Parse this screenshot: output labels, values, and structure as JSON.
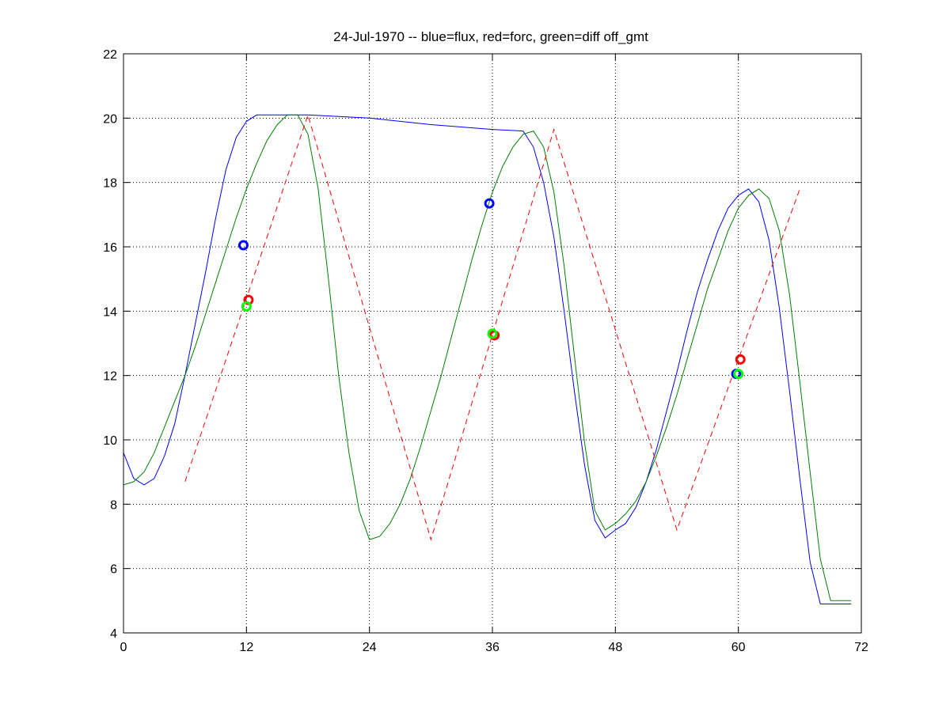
{
  "chart_data": {
    "type": "line",
    "title": "24-Jul-1970 -- blue=flux, red=forc, green=diff off_gmt",
    "xlim": [
      0,
      72
    ],
    "ylim": [
      4,
      22
    ],
    "xticks": [
      0,
      12,
      24,
      36,
      48,
      60,
      72
    ],
    "yticks": [
      4,
      6,
      8,
      10,
      12,
      14,
      16,
      18,
      20,
      22
    ],
    "grid": true,
    "series": [
      {
        "color": "#0000ff",
        "style": "solid",
        "x": [
          0,
          1,
          2,
          3,
          4,
          5,
          6,
          7,
          8,
          9,
          10,
          11,
          12,
          13,
          14,
          15,
          16,
          17,
          18,
          24,
          30,
          36,
          39,
          40,
          41,
          42,
          43,
          44,
          45,
          46,
          47,
          48,
          49,
          50,
          51,
          52,
          53,
          54,
          55,
          56,
          57,
          58,
          59,
          60,
          61,
          62,
          63,
          64,
          65,
          66,
          67,
          68,
          69,
          70,
          71
        ],
        "y": [
          9.6,
          8.8,
          8.6,
          8.8,
          9.5,
          10.5,
          12.0,
          13.6,
          15.2,
          16.9,
          18.4,
          19.4,
          19.9,
          20.1,
          20.1,
          20.1,
          20.1,
          20.1,
          20.1,
          20.0,
          19.8,
          19.65,
          19.6,
          19.1,
          18.0,
          16.3,
          14.0,
          11.5,
          9.2,
          7.5,
          6.95,
          7.2,
          7.4,
          7.9,
          8.7,
          9.7,
          10.9,
          12.1,
          13.4,
          14.6,
          15.6,
          16.5,
          17.2,
          17.6,
          17.8,
          17.4,
          16.2,
          14.1,
          11.5,
          8.8,
          6.2,
          4.9,
          4.9,
          4.9,
          4.9
        ]
      },
      {
        "color": "#008000",
        "style": "solid",
        "x": [
          0,
          1,
          2,
          3,
          4,
          5,
          6,
          7,
          8,
          9,
          10,
          11,
          12,
          13,
          14,
          15,
          16,
          17,
          18,
          19,
          20,
          21,
          22,
          23,
          24,
          25,
          26,
          27,
          28,
          29,
          30,
          31,
          32,
          33,
          34,
          35,
          36,
          37,
          38,
          39,
          40,
          41,
          42,
          43,
          44,
          45,
          46,
          47,
          48,
          49,
          50,
          51,
          52,
          53,
          54,
          55,
          56,
          57,
          58,
          59,
          60,
          61,
          62,
          63,
          64,
          65,
          66,
          67,
          68,
          69,
          70,
          71
        ],
        "y": [
          8.6,
          8.7,
          9.0,
          9.6,
          10.4,
          11.2,
          12.0,
          12.9,
          13.9,
          14.9,
          15.9,
          16.9,
          17.8,
          18.6,
          19.3,
          19.8,
          20.1,
          20.1,
          19.5,
          17.8,
          15.0,
          12.0,
          9.6,
          7.8,
          6.9,
          7.0,
          7.4,
          8.0,
          8.8,
          9.8,
          10.9,
          12.0,
          13.2,
          14.4,
          15.6,
          16.7,
          17.7,
          18.5,
          19.1,
          19.5,
          19.6,
          19.1,
          17.7,
          15.4,
          12.6,
          9.9,
          7.8,
          7.2,
          7.4,
          7.7,
          8.1,
          8.7,
          9.5,
          10.4,
          11.4,
          12.5,
          13.6,
          14.7,
          15.6,
          16.5,
          17.2,
          17.6,
          17.8,
          17.5,
          16.5,
          14.5,
          11.8,
          9.0,
          6.3,
          5.0,
          5.0,
          5.0
        ],
        "note_hidden": null
      },
      {
        "color": "#ff0000",
        "style": "dashed",
        "x": [
          6,
          18,
          30,
          42,
          54,
          66
        ],
        "y": [
          8.7,
          20.1,
          6.9,
          19.65,
          7.2,
          17.8
        ]
      }
    ],
    "markers": [
      {
        "color": "#0000ff",
        "x": 11.7,
        "y": 16.05
      },
      {
        "color": "#ff0000",
        "x": 12.2,
        "y": 14.35
      },
      {
        "color": "#00ff00",
        "x": 12.0,
        "y": 14.15
      },
      {
        "color": "#0000ff",
        "x": 35.7,
        "y": 17.35
      },
      {
        "color": "#ff0000",
        "x": 36.2,
        "y": 13.25
      },
      {
        "color": "#00ff00",
        "x": 36.0,
        "y": 13.3
      },
      {
        "color": "#0000ff",
        "x": 59.8,
        "y": 12.05
      },
      {
        "color": "#ff0000",
        "x": 60.2,
        "y": 12.5
      },
      {
        "color": "#00ff00",
        "x": 60.0,
        "y": 12.05
      }
    ]
  }
}
